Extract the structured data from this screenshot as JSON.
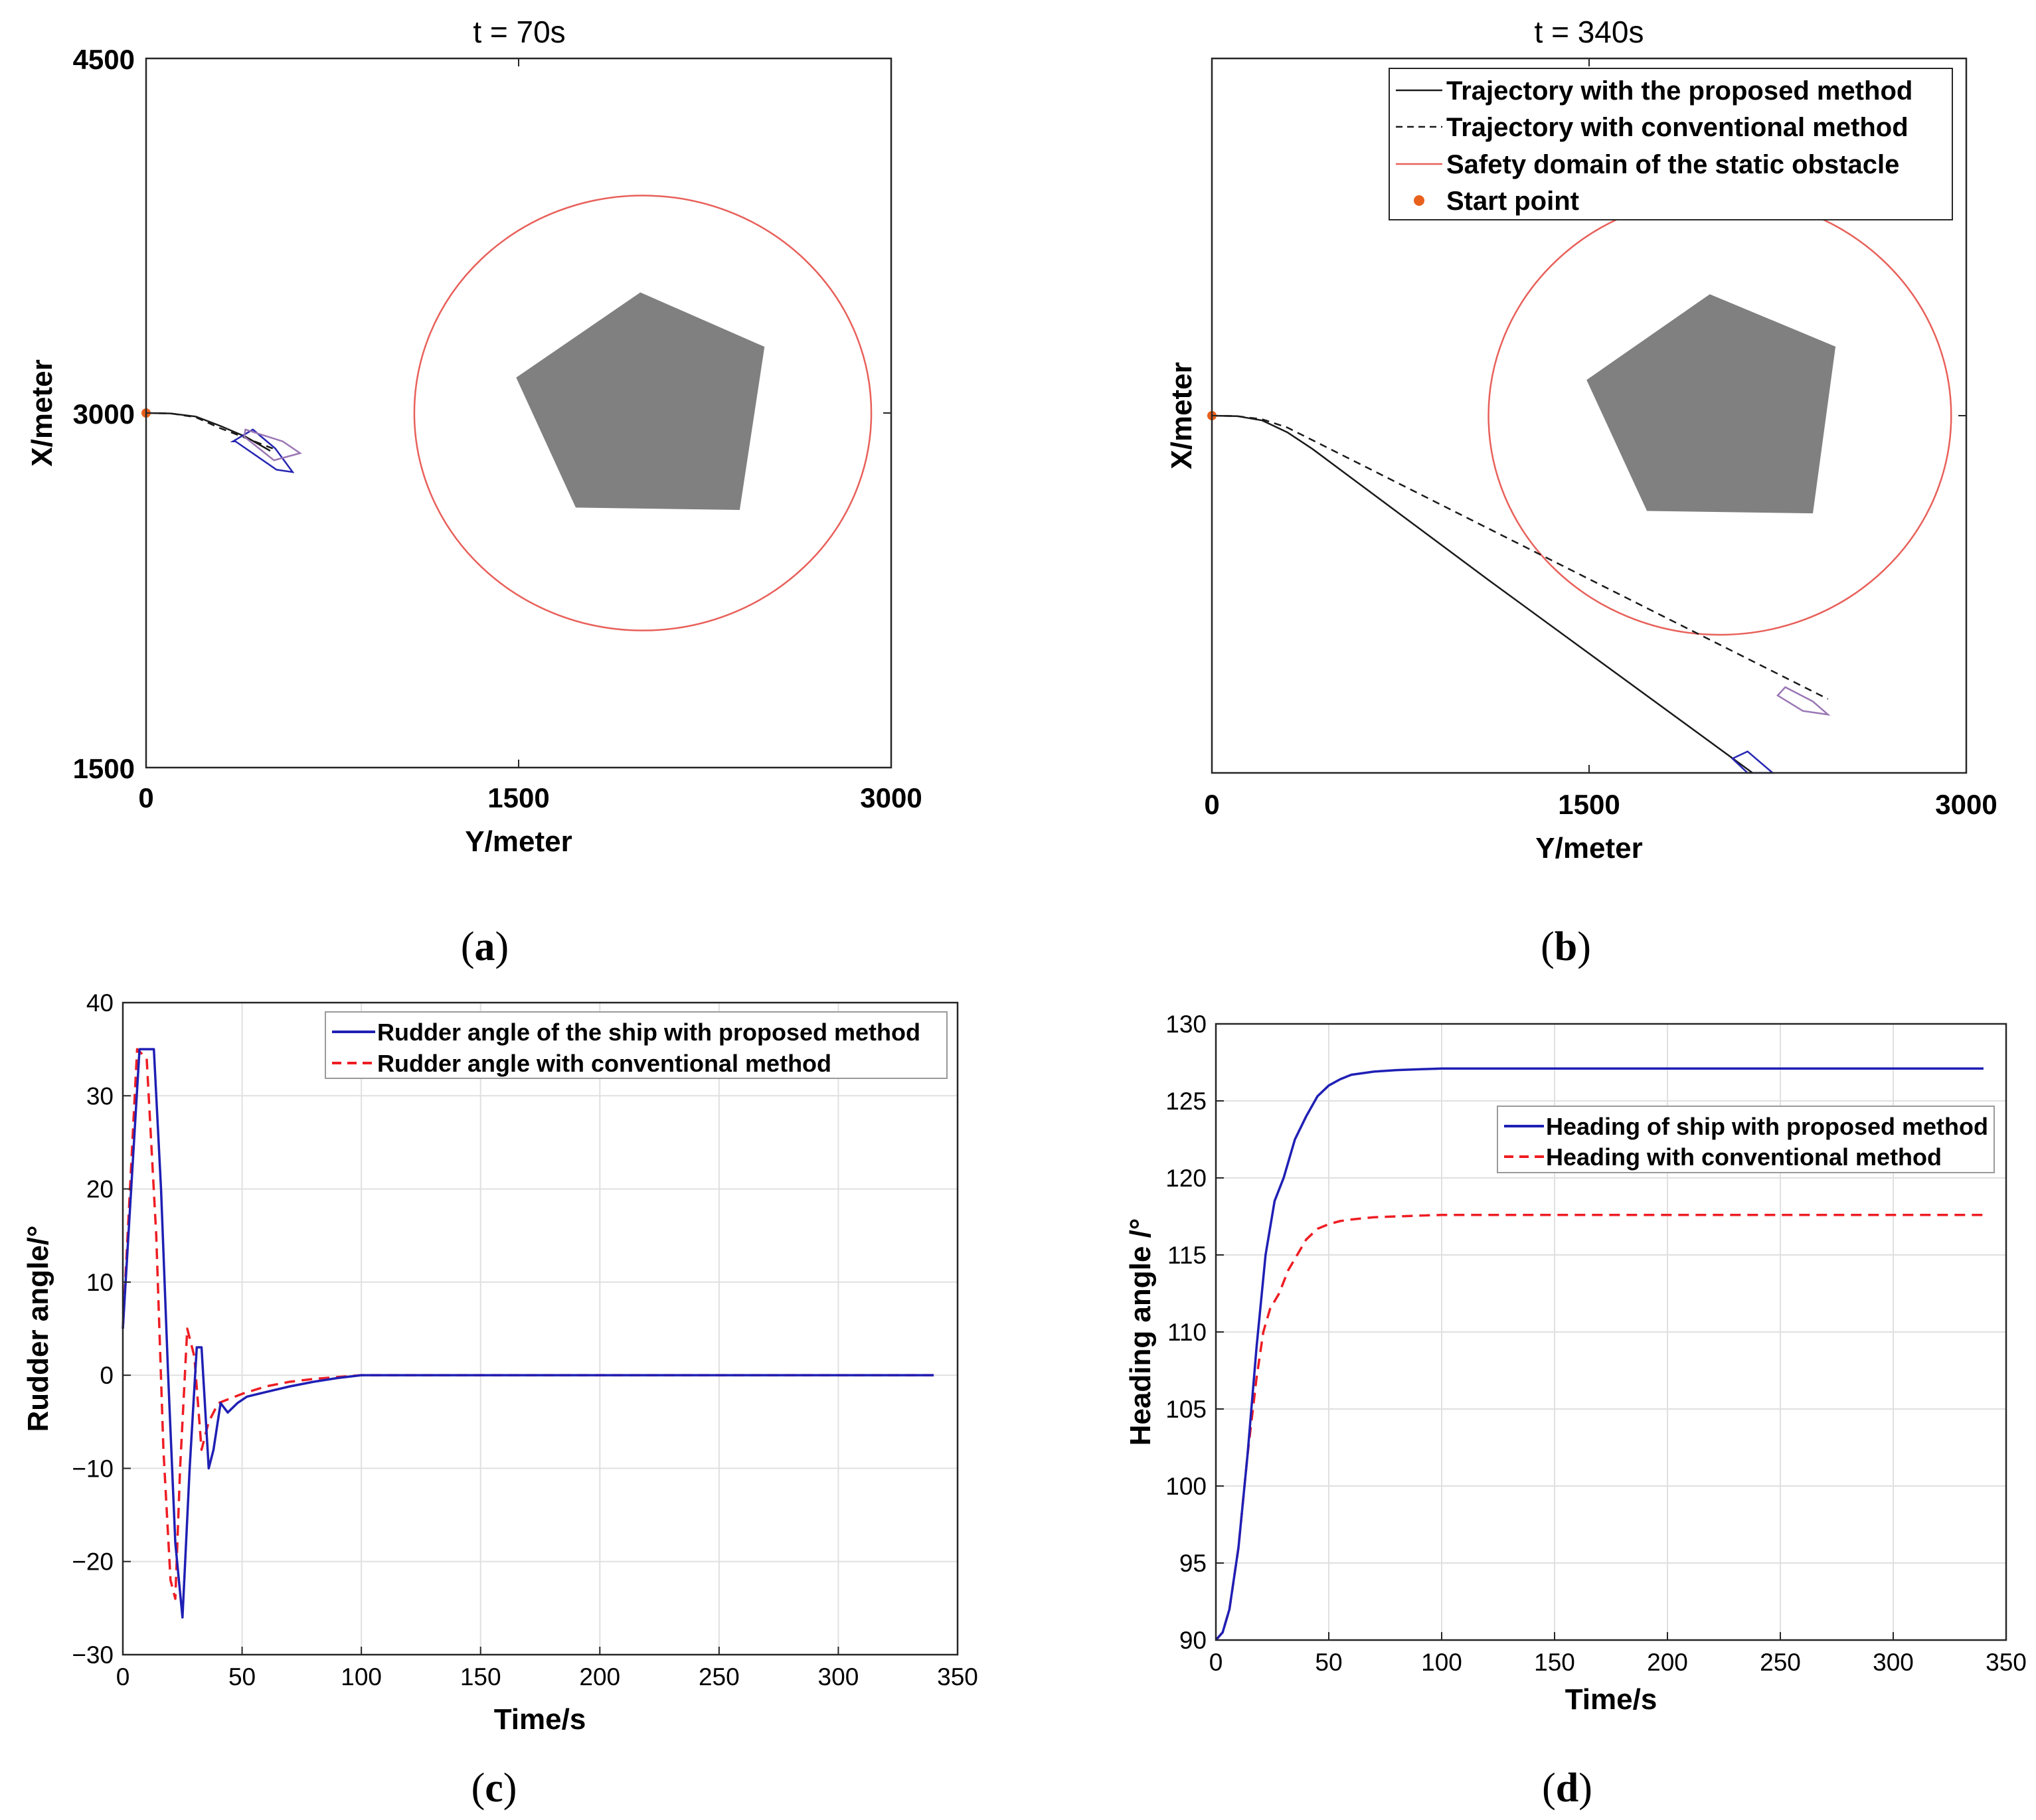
{
  "colors": {
    "proposed_black": "#1a1a1a",
    "conventional_dashed": "#1a1a1a",
    "safety_circle": "#e8605a",
    "start_point": "#e8601c",
    "obstacle": "#808080",
    "ship_blue": "#2626b3",
    "ship_purple": "#9a76b4",
    "rudder_proposed": "#1f1fb5",
    "rudder_conventional": "#ee1d23",
    "grid": "#e0e0e0"
  },
  "chart_data": [
    {
      "id": "a",
      "type": "scatter",
      "title": "t = 70s",
      "xlabel": "Y/meter",
      "ylabel": "X/meter",
      "xlim": [
        0,
        3000
      ],
      "ylim": [
        1500,
        4500
      ],
      "xticks": [
        0,
        1500,
        3000
      ],
      "yticks": [
        1500,
        3000,
        4500
      ],
      "x_tick_labels": [
        "0",
        "1500",
        "3000"
      ],
      "y_tick_labels": [
        "1500",
        "3000",
        "4500"
      ],
      "caption": "a",
      "start_point": [
        0,
        3000
      ],
      "safety_circle": {
        "center": [
          2000,
          3000
        ],
        "radius": 920
      },
      "obstacle_polygon": [
        [
          1990,
          3510
        ],
        [
          2490,
          3280
        ],
        [
          2390,
          2590
        ],
        [
          1730,
          2600
        ],
        [
          1490,
          3150
        ]
      ],
      "series": [
        {
          "name": "Trajectory with the proposed method",
          "style": "solid",
          "points": [
            [
              0,
              3000
            ],
            [
              100,
              2998
            ],
            [
              200,
              2985
            ],
            [
              300,
              2945
            ],
            [
              400,
              2900
            ],
            [
              500,
              2840
            ]
          ]
        },
        {
          "name": "Trajectory with conventional method",
          "style": "dashed",
          "points": [
            [
              0,
              3000
            ],
            [
              100,
              2998
            ],
            [
              200,
              2982
            ],
            [
              300,
              2935
            ],
            [
              400,
              2895
            ],
            [
              510,
              2850
            ]
          ]
        }
      ],
      "ships": [
        {
          "color": "ship_blue",
          "points": [
            [
              350,
              2880
            ],
            [
              430,
              2930
            ],
            [
              520,
              2850
            ],
            [
              590,
              2750
            ],
            [
              525,
              2760
            ],
            [
              360,
              2880
            ]
          ]
        },
        {
          "color": "ship_purple",
          "points": [
            [
              400,
              2930
            ],
            [
              550,
              2880
            ],
            [
              620,
              2830
            ],
            [
              515,
              2800
            ],
            [
              395,
              2900
            ]
          ]
        }
      ]
    },
    {
      "id": "b",
      "type": "scatter",
      "title": "t = 340s",
      "xlabel": "Y/meter",
      "ylabel": "X/meter",
      "xlim": [
        0,
        3000
      ],
      "ylim": [
        1500,
        4500
      ],
      "xticks": [
        0,
        1500,
        3000
      ],
      "yticks": [
        1500,
        3000,
        4500
      ],
      "x_tick_labels": [
        "0",
        "1500",
        "3000"
      ],
      "y_tick_labels": [],
      "caption": "b",
      "legend_loc": "top-right",
      "legend": [
        {
          "label": "Trajectory with the proposed method",
          "style": "solid"
        },
        {
          "label": "Trajectory with conventional method",
          "style": "dashed"
        },
        {
          "label": "Safety domain of the static obstacle",
          "style": "circle"
        },
        {
          "label": "Start point",
          "style": "dot"
        }
      ],
      "start_point": [
        0,
        3000
      ],
      "safety_circle": {
        "center": [
          2020,
          3000
        ],
        "radius": 920
      },
      "obstacle_polygon": [
        [
          1980,
          3510
        ],
        [
          2480,
          3290
        ],
        [
          2390,
          2590
        ],
        [
          1730,
          2600
        ],
        [
          1490,
          3150
        ]
      ],
      "series": [
        {
          "name": "Trajectory with the proposed method",
          "style": "solid",
          "points": [
            [
              0,
              3000
            ],
            [
              100,
              2998
            ],
            [
              200,
              2980
            ],
            [
              300,
              2930
            ],
            [
              400,
              2860
            ],
            [
              1100,
              2310
            ],
            [
              2150,
              1500
            ]
          ]
        },
        {
          "name": "Trajectory with conventional method",
          "style": "dashed",
          "points": [
            [
              0,
              3000
            ],
            [
              100,
              2998
            ],
            [
              200,
              2985
            ],
            [
              300,
              2950
            ],
            [
              2450,
              1810
            ]
          ]
        }
      ],
      "ships": [
        {
          "color": "ship_purple",
          "points": [
            [
              2280,
              1860
            ],
            [
              2390,
              1800
            ],
            [
              2450,
              1745
            ],
            [
              2350,
              1760
            ],
            [
              2250,
              1825
            ]
          ]
        },
        {
          "color": "ship_blue",
          "points": [
            [
              2070,
              1560
            ],
            [
              2130,
              1590
            ],
            [
              2230,
              1500
            ],
            [
              2130,
              1500
            ]
          ]
        }
      ]
    },
    {
      "id": "c",
      "type": "line",
      "xlabel": "Time/s",
      "ylabel": "Rudder angle/°",
      "xlim": [
        0,
        350
      ],
      "ylim": [
        -30,
        40
      ],
      "xticks": [
        0,
        50,
        100,
        150,
        200,
        250,
        300,
        350
      ],
      "yticks": [
        -30,
        -20,
        -10,
        0,
        10,
        20,
        30,
        40
      ],
      "x_tick_labels": [
        "0",
        "50",
        "100",
        "150",
        "200",
        "250",
        "300",
        "350"
      ],
      "y_tick_labels": [
        "−30",
        "−20",
        "−10",
        "0",
        "10",
        "20",
        "30",
        "40"
      ],
      "grid": true,
      "caption": "c",
      "legend_loc": "top-right",
      "series": [
        {
          "name": "Rudder angle of the ship with proposed method",
          "color": "rudder_proposed",
          "style": "solid",
          "x": [
            0,
            7,
            13,
            16,
            19,
            22,
            25,
            28,
            31,
            33,
            36,
            38,
            41,
            44,
            48,
            52,
            60,
            70,
            80,
            90,
            100,
            120,
            340
          ],
          "y": [
            5,
            35,
            35,
            20,
            0,
            -18,
            -26,
            -10,
            3,
            3,
            -10,
            -8,
            -3,
            -4,
            -3,
            -2.3,
            -1.8,
            -1.2,
            -0.7,
            -0.3,
            0,
            0,
            0
          ]
        },
        {
          "name": "Rudder angle with conventional method",
          "color": "rudder_conventional",
          "style": "dashed",
          "x": [
            0,
            6,
            10,
            14,
            17,
            20,
            22,
            24,
            27,
            30,
            33,
            36,
            40,
            45,
            50,
            60,
            70,
            80,
            90,
            100,
            120,
            340
          ],
          "y": [
            5,
            35,
            34,
            15,
            -8,
            -22,
            -24,
            -10,
            5,
            2,
            -8,
            -5,
            -3,
            -2.5,
            -2,
            -1.2,
            -0.7,
            -0.4,
            -0.2,
            0,
            0,
            0
          ]
        }
      ]
    },
    {
      "id": "d",
      "type": "line",
      "xlabel": "Time/s",
      "ylabel": "Heading angle /°",
      "xlim": [
        0,
        350
      ],
      "ylim": [
        90,
        130
      ],
      "xticks": [
        0,
        50,
        100,
        150,
        200,
        250,
        300,
        350
      ],
      "yticks": [
        90,
        95,
        100,
        105,
        110,
        115,
        120,
        125,
        130
      ],
      "x_tick_labels": [
        "0",
        "50",
        "100",
        "150",
        "200",
        "250",
        "300",
        "350"
      ],
      "y_tick_labels": [
        "90",
        "95",
        "100",
        "105",
        "110",
        "115",
        "120",
        "125",
        "130"
      ],
      "grid": true,
      "caption": "d",
      "legend_loc": "upper-right",
      "series": [
        {
          "name": "Heading of ship with proposed method",
          "color": "rudder_proposed",
          "style": "solid",
          "x": [
            0,
            3,
            6,
            10,
            14,
            18,
            22,
            26,
            30,
            35,
            40,
            45,
            50,
            55,
            60,
            70,
            80,
            90,
            100,
            340
          ],
          "y": [
            90,
            90.5,
            92,
            96,
            102,
            109,
            115,
            118.5,
            120,
            122.5,
            124,
            125.3,
            126,
            126.4,
            126.7,
            126.9,
            127,
            127.05,
            127.1,
            127.1
          ]
        },
        {
          "name": "Heading with conventional method",
          "color": "rudder_conventional",
          "style": "dashed",
          "x": [
            0,
            3,
            6,
            10,
            14,
            18,
            21,
            24,
            28,
            32,
            36,
            40,
            45,
            50,
            55,
            60,
            70,
            80,
            90,
            100,
            340
          ],
          "y": [
            90,
            90.5,
            92,
            96,
            102,
            107,
            110,
            111.5,
            112.5,
            114,
            115,
            116,
            116.7,
            117,
            117.2,
            117.3,
            117.45,
            117.5,
            117.55,
            117.6,
            117.6
          ]
        }
      ]
    }
  ]
}
